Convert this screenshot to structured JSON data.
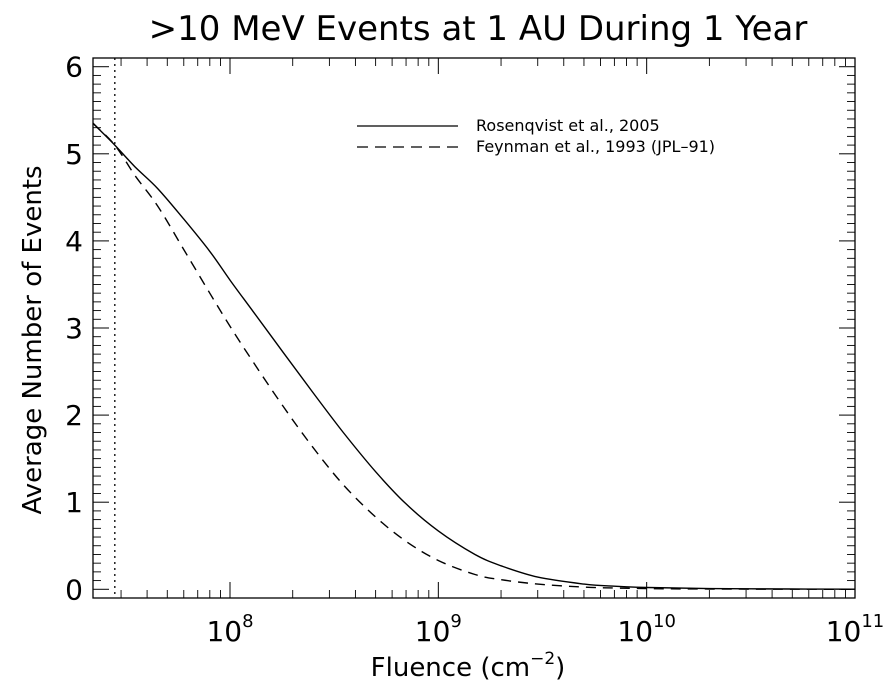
{
  "chart_data": {
    "type": "line",
    "title": ">10 MeV Events at 1 AU During 1 Year",
    "xlabel": "Fluence (cm",
    "xlabel_sup": "−2",
    "xlabel_end": ")",
    "ylabel": "Average Number of Events",
    "x_scale": "log",
    "xlim": [
      22000000.0,
      100000000000.0
    ],
    "ylim": [
      -0.1,
      6.1
    ],
    "x_ticks": [
      {
        "value": 100000000.0,
        "base": "10",
        "exp": "8"
      },
      {
        "value": 1000000000.0,
        "base": "10",
        "exp": "9"
      },
      {
        "value": 10000000000.0,
        "base": "10",
        "exp": "10"
      },
      {
        "value": 100000000000.0,
        "base": "10",
        "exp": "11"
      }
    ],
    "y_ticks": [
      {
        "value": 0,
        "label": "0"
      },
      {
        "value": 1,
        "label": "1"
      },
      {
        "value": 2,
        "label": "2"
      },
      {
        "value": 3,
        "label": "3"
      },
      {
        "value": 4,
        "label": "4"
      },
      {
        "value": 5,
        "label": "5"
      },
      {
        "value": 6,
        "label": "6"
      }
    ],
    "grid": false,
    "legend_position": "top-right",
    "reference_line": {
      "x": 28000000.0,
      "style": "dotted"
    },
    "series": [
      {
        "name": "Rosenqvist et al., 2005",
        "style": "solid",
        "color": "#000000",
        "x": [
          22000000.0,
          28000000.0,
          35000000.0,
          45000000.0,
          60000000.0,
          80000000.0,
          100000000.0,
          130000000.0,
          180000000.0,
          250000000.0,
          350000000.0,
          500000000.0,
          700000000.0,
          1000000000.0,
          1500000000.0,
          2000000000.0,
          3000000000.0,
          5000000000.0,
          7000000000.0,
          10000000000.0,
          20000000000.0,
          50000000000.0,
          100000000000.0
        ],
        "y": [
          5.35,
          5.1,
          4.85,
          4.6,
          4.25,
          3.88,
          3.55,
          3.18,
          2.72,
          2.26,
          1.8,
          1.35,
          0.98,
          0.67,
          0.4,
          0.27,
          0.14,
          0.06,
          0.035,
          0.02,
          0.008,
          0.003,
          0.001
        ]
      },
      {
        "name": "Feynman et al., 1993 (JPL–91)",
        "style": "dashed",
        "color": "#000000",
        "x": [
          22000000.0,
          28000000.0,
          35000000.0,
          45000000.0,
          60000000.0,
          80000000.0,
          100000000.0,
          130000000.0,
          180000000.0,
          250000000.0,
          350000000.0,
          500000000.0,
          700000000.0,
          1000000000.0,
          1500000000.0,
          2000000000.0,
          3000000000.0,
          5000000000.0,
          7000000000.0,
          10000000000.0,
          20000000000.0,
          50000000000.0,
          100000000000.0
        ],
        "y": [
          5.35,
          5.1,
          4.75,
          4.4,
          3.9,
          3.4,
          3.02,
          2.6,
          2.1,
          1.63,
          1.2,
          0.83,
          0.55,
          0.33,
          0.17,
          0.11,
          0.06,
          0.025,
          0.015,
          0.008,
          0.003,
          0.001,
          0.0
        ]
      }
    ]
  }
}
